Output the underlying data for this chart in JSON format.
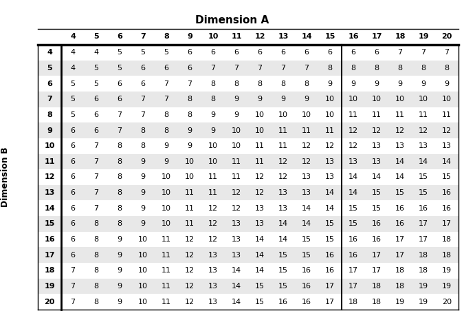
{
  "title": "Dimension A",
  "ylabel": "Dimension B",
  "col_headers": [
    "",
    "4",
    "5",
    "6",
    "7",
    "8",
    "9",
    "10",
    "11",
    "12",
    "13",
    "14",
    "15",
    "16",
    "17",
    "18",
    "19",
    "20"
  ],
  "row_headers": [
    "4",
    "5",
    "6",
    "7",
    "8",
    "9",
    "10",
    "11",
    "12",
    "13",
    "14",
    "15",
    "16",
    "17",
    "18",
    "19",
    "20"
  ],
  "table_data": [
    [
      4,
      4,
      5,
      5,
      5,
      6,
      6,
      6,
      6,
      6,
      6,
      6,
      6,
      6,
      7,
      7,
      7
    ],
    [
      4,
      5,
      5,
      6,
      6,
      6,
      7,
      7,
      7,
      7,
      7,
      8,
      8,
      8,
      8,
      8,
      8
    ],
    [
      5,
      5,
      6,
      6,
      7,
      7,
      8,
      8,
      8,
      8,
      8,
      9,
      9,
      9,
      9,
      9,
      9
    ],
    [
      5,
      6,
      6,
      7,
      7,
      8,
      8,
      9,
      9,
      9,
      9,
      10,
      10,
      10,
      10,
      10,
      10
    ],
    [
      5,
      6,
      7,
      7,
      8,
      8,
      9,
      9,
      10,
      10,
      10,
      10,
      11,
      11,
      11,
      11,
      11
    ],
    [
      6,
      6,
      7,
      8,
      8,
      9,
      9,
      10,
      10,
      11,
      11,
      11,
      12,
      12,
      12,
      12,
      12
    ],
    [
      6,
      7,
      8,
      8,
      9,
      9,
      10,
      10,
      11,
      11,
      12,
      12,
      12,
      13,
      13,
      13,
      13
    ],
    [
      6,
      7,
      8,
      9,
      9,
      10,
      10,
      11,
      11,
      12,
      12,
      13,
      13,
      13,
      14,
      14,
      14
    ],
    [
      6,
      7,
      8,
      9,
      10,
      10,
      11,
      11,
      12,
      12,
      13,
      13,
      14,
      14,
      14,
      15,
      15
    ],
    [
      6,
      7,
      8,
      9,
      10,
      11,
      11,
      12,
      12,
      13,
      13,
      14,
      14,
      15,
      15,
      15,
      16
    ],
    [
      6,
      7,
      8,
      9,
      10,
      11,
      12,
      12,
      13,
      13,
      14,
      14,
      15,
      15,
      16,
      16,
      16
    ],
    [
      6,
      8,
      8,
      9,
      10,
      11,
      12,
      13,
      13,
      14,
      14,
      15,
      15,
      16,
      16,
      17,
      17
    ],
    [
      6,
      8,
      9,
      10,
      11,
      12,
      12,
      13,
      14,
      14,
      15,
      15,
      16,
      16,
      17,
      17,
      18
    ],
    [
      6,
      8,
      9,
      10,
      11,
      12,
      13,
      13,
      14,
      15,
      15,
      16,
      16,
      17,
      17,
      18,
      18
    ],
    [
      7,
      8,
      9,
      10,
      11,
      12,
      13,
      14,
      14,
      15,
      16,
      16,
      17,
      17,
      18,
      18,
      19
    ],
    [
      7,
      8,
      9,
      10,
      11,
      12,
      13,
      14,
      15,
      15,
      16,
      17,
      17,
      18,
      18,
      19,
      19
    ],
    [
      7,
      8,
      9,
      10,
      11,
      12,
      13,
      14,
      15,
      16,
      16,
      17,
      18,
      18,
      19,
      19,
      20
    ]
  ],
  "even_row_color": "#e8e8e8",
  "odd_row_color": "#f5f5f5",
  "white_row_color": "#ffffff",
  "header_bg": "#ffffff",
  "sep_after_col_idx": 12,
  "thick_line_after_header": true
}
